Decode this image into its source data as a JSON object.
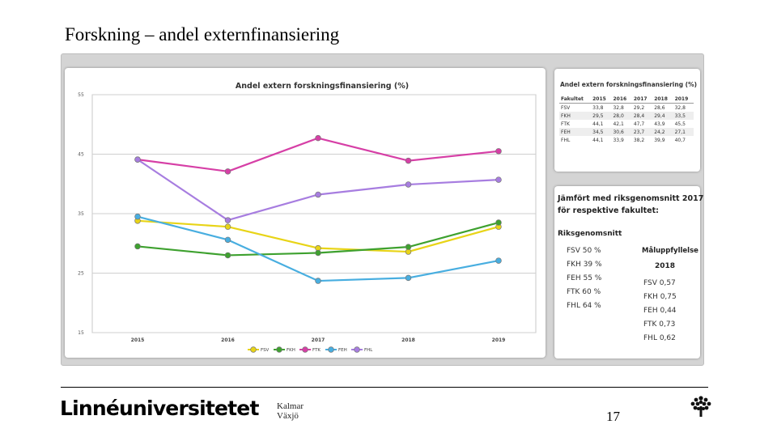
{
  "slide": {
    "title": "Forskning – andel externfinansiering",
    "page_number": "17"
  },
  "footer": {
    "brand": "Linnéuniversitetet",
    "campus_1": "Kalmar",
    "campus_2": "Växjö"
  },
  "chart_data": {
    "type": "line",
    "title": "Andel extern forskningsfinansiering (%)",
    "x": [
      "2015",
      "2016",
      "2017",
      "2018",
      "2019"
    ],
    "ylim": [
      15,
      55
    ],
    "yticks": [
      15,
      25,
      35,
      45,
      55
    ],
    "ytick_labels": [
      "15",
      "25",
      "35",
      "45",
      "55"
    ],
    "xlabel": "",
    "ylabel": "",
    "legend_position": "bottom",
    "grid": true,
    "series": [
      {
        "name": "FSV",
        "color": "#e8d417",
        "values": [
          33.8,
          32.8,
          29.2,
          28.6,
          32.8
        ]
      },
      {
        "name": "FKH",
        "color": "#3ea12f",
        "values": [
          29.5,
          28.0,
          28.4,
          29.4,
          33.5
        ]
      },
      {
        "name": "FTK",
        "color": "#d63fa6",
        "values": [
          44.1,
          42.1,
          47.7,
          43.9,
          45.5
        ]
      },
      {
        "name": "FEH",
        "color": "#48aee0",
        "values": [
          34.5,
          30.6,
          23.7,
          24.2,
          27.1
        ]
      },
      {
        "name": "FHL",
        "color": "#a77de0",
        "values": [
          44.1,
          33.9,
          38.2,
          39.9,
          40.7
        ]
      }
    ]
  },
  "table": {
    "title": "Andel extern forskningsfinansiering (%)",
    "headers": [
      "Fakultet",
      "2015",
      "2016",
      "2017",
      "2018",
      "2019"
    ],
    "rows": [
      [
        "FSV",
        "33,8",
        "32,8",
        "29,2",
        "28,6",
        "32,8"
      ],
      [
        "FKH",
        "29,5",
        "28,0",
        "28,4",
        "29,4",
        "33,5"
      ],
      [
        "FTK",
        "44,1",
        "42,1",
        "47,7",
        "43,9",
        "45,5"
      ],
      [
        "FEH",
        "34,5",
        "30,6",
        "23,7",
        "24,2",
        "27,1"
      ],
      [
        "FHL",
        "44,1",
        "33,9",
        "38,2",
        "39,9",
        "40,7"
      ]
    ]
  },
  "comparison": {
    "title_line1": "Jämfört med riksgenomsnitt 2017",
    "title_line2": "för respektive fakultet:",
    "riks_label": "Riksgenomsnitt",
    "riks": [
      "FSV 50 %",
      "FKH 39 %",
      "FEH 55 %",
      "FTK 60 %",
      "FHL 64 %"
    ],
    "mal_label": "Måluppfyllelse",
    "mal_year": "2018",
    "mal": [
      "FSV 0,57",
      "FKH 0,75",
      "FEH 0,44",
      "FTK 0,73",
      "FHL 0,62"
    ]
  }
}
